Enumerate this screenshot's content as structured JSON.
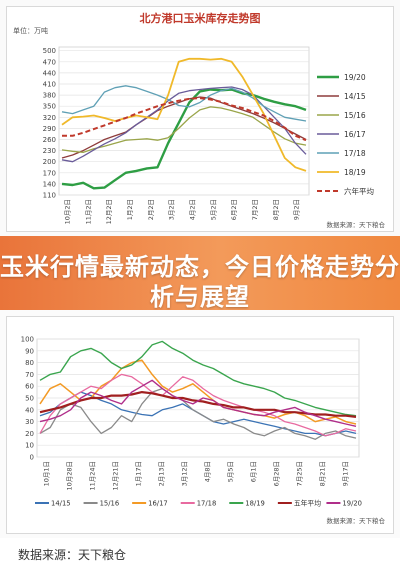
{
  "banner": {
    "headline": "玉米行情最新动态，今日价格走势分析与展望"
  },
  "footer": {
    "source": "数据来源：天下粮仓"
  },
  "chart_data": [
    {
      "type": "line",
      "title": "北方港口玉米库存走势图",
      "unit": "单位：万吨",
      "source": "数据来源：天下粮仓",
      "ylim": [
        110,
        510
      ],
      "yticks": [
        110,
        140,
        170,
        200,
        230,
        260,
        290,
        320,
        350,
        380,
        410,
        440,
        470,
        500
      ],
      "xticks": [
        "10月2日",
        "11月2日",
        "12月2日",
        "1月2日",
        "2月2日",
        "3月2日",
        "4月2日",
        "5月2日",
        "6月2日",
        "7月2日",
        "8月2日",
        "9月2日"
      ],
      "legend_position": "right",
      "series": [
        {
          "name": "19/20",
          "color": "#2e9e44",
          "width": 2.4,
          "dash": "",
          "values": [
            140,
            137,
            143,
            128,
            130,
            150,
            170,
            175,
            182,
            185,
            250,
            305,
            360,
            390,
            395,
            393,
            395,
            385,
            380,
            370,
            362,
            355,
            350,
            340
          ]
        },
        {
          "name": "14/15",
          "color": "#8e3b3b",
          "width": 1.3,
          "dash": "",
          "values": [
            210,
            218,
            230,
            245,
            260,
            270,
            280,
            300,
            318,
            338,
            350,
            360,
            370,
            375,
            372,
            360,
            350,
            340,
            330,
            318,
            305,
            290,
            275,
            260
          ]
        },
        {
          "name": "15/16",
          "color": "#9aa54a",
          "width": 1.3,
          "dash": "",
          "values": [
            232,
            228,
            225,
            235,
            242,
            250,
            258,
            260,
            262,
            258,
            265,
            290,
            318,
            340,
            348,
            345,
            338,
            330,
            320,
            300,
            280,
            262,
            250,
            245
          ]
        },
        {
          "name": "16/17",
          "color": "#6a5c9a",
          "width": 1.3,
          "dash": "",
          "values": [
            205,
            200,
            215,
            232,
            248,
            262,
            278,
            300,
            320,
            340,
            365,
            385,
            392,
            395,
            398,
            400,
            402,
            395,
            380,
            350,
            320,
            290,
            250,
            220
          ]
        },
        {
          "name": "17/18",
          "color": "#5fa0b5",
          "width": 1.3,
          "dash": "",
          "values": [
            335,
            330,
            340,
            350,
            388,
            400,
            405,
            400,
            390,
            380,
            368,
            352,
            348,
            360,
            380,
            392,
            398,
            388,
            372,
            350,
            335,
            320,
            315,
            310
          ]
        },
        {
          "name": "18/19",
          "color": "#f0b92a",
          "width": 1.8,
          "dash": "",
          "values": [
            300,
            320,
            322,
            325,
            318,
            310,
            318,
            325,
            320,
            315,
            380,
            470,
            478,
            478,
            476,
            478,
            470,
            430,
            380,
            330,
            270,
            210,
            185,
            175
          ]
        },
        {
          "name": "六年平均",
          "color": "#c0392b",
          "width": 2.0,
          "dash": "5,3",
          "values": [
            270,
            270,
            278,
            288,
            298,
            308,
            318,
            330,
            340,
            350,
            358,
            365,
            370,
            372,
            368,
            362,
            352,
            345,
            335,
            325,
            310,
            292,
            270,
            258
          ]
        }
      ]
    },
    {
      "type": "line",
      "unit": "",
      "source": "数据来源：天下粮仓",
      "ylim": [
        0,
        100
      ],
      "yticks": [
        0,
        10,
        20,
        30,
        40,
        50,
        60,
        70,
        80,
        90,
        100
      ],
      "xticks": [
        "10月1日",
        "10月28日",
        "11月24日",
        "12月21日",
        "1月17日",
        "2月13日",
        "3月12日",
        "4月8日",
        "5月5日",
        "6月1日",
        "6月28日",
        "7月25日",
        "8月21日",
        "9月17日"
      ],
      "legend_position": "bottom",
      "series": [
        {
          "name": "14/15",
          "color": "#3b73b5",
          "width": 1.3,
          "dash": "",
          "values": [
            35,
            38,
            45,
            50,
            55,
            52,
            48,
            45,
            40,
            38,
            36,
            35,
            40,
            42,
            45,
            40,
            35,
            30,
            28,
            30,
            32,
            30,
            28,
            26,
            24,
            22,
            20,
            20,
            18,
            20,
            22,
            20
          ]
        },
        {
          "name": "15/16",
          "color": "#8a8a8a",
          "width": 1.3,
          "dash": "",
          "values": [
            20,
            25,
            40,
            45,
            42,
            30,
            20,
            25,
            35,
            30,
            45,
            55,
            58,
            52,
            48,
            40,
            35,
            30,
            32,
            28,
            25,
            20,
            18,
            22,
            25,
            20,
            18,
            15,
            20,
            22,
            18,
            16
          ]
        },
        {
          "name": "16/17",
          "color": "#f39a25",
          "width": 1.5,
          "dash": "",
          "values": [
            45,
            58,
            62,
            55,
            48,
            50,
            60,
            65,
            75,
            80,
            82,
            70,
            60,
            55,
            58,
            62,
            55,
            48,
            42,
            40,
            38,
            36,
            35,
            33,
            36,
            38,
            35,
            30,
            32,
            34,
            30,
            28
          ]
        },
        {
          "name": "17/18",
          "color": "#e86aa0",
          "width": 1.3,
          "dash": "",
          "values": [
            20,
            35,
            45,
            50,
            55,
            60,
            58,
            65,
            70,
            68,
            62,
            55,
            52,
            60,
            68,
            65,
            58,
            52,
            48,
            45,
            42,
            40,
            38,
            35,
            30,
            28,
            25,
            22,
            18,
            20,
            24,
            22
          ]
        },
        {
          "name": "18/19",
          "color": "#3aa54e",
          "width": 1.4,
          "dash": "",
          "values": [
            65,
            70,
            72,
            85,
            90,
            92,
            88,
            80,
            75,
            78,
            85,
            95,
            98,
            92,
            88,
            82,
            78,
            75,
            70,
            65,
            62,
            60,
            58,
            55,
            50,
            48,
            45,
            42,
            40,
            38,
            36,
            35
          ]
        },
        {
          "name": "五年平均",
          "color": "#a01f1f",
          "width": 2.2,
          "dash": "",
          "values": [
            38,
            40,
            42,
            45,
            48,
            50,
            50,
            52,
            52,
            53,
            55,
            54,
            52,
            50,
            50,
            48,
            47,
            45,
            44,
            42,
            42,
            40,
            40,
            40,
            38,
            38,
            37,
            36,
            36,
            35,
            35,
            34
          ]
        },
        {
          "name": "19/20",
          "color": "#b02e8a",
          "width": 1.4,
          "dash": "",
          "values": [
            30,
            32,
            35,
            40,
            50,
            55,
            52,
            48,
            45,
            55,
            60,
            65,
            58,
            52,
            48,
            45,
            50,
            48,
            42,
            40,
            38,
            36,
            35,
            38,
            40,
            42,
            38,
            35,
            32,
            30,
            28,
            26
          ]
        }
      ]
    }
  ]
}
